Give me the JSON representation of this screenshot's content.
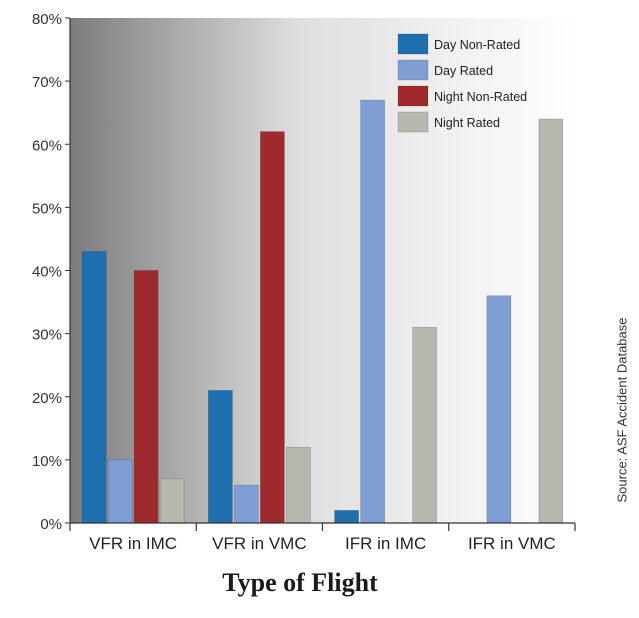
{
  "chart_data": {
    "type": "bar",
    "title": "",
    "xlabel": "Type of Flight",
    "ylabel": "",
    "source": "Source: ASF Accident Database",
    "categories": [
      "VFR in IMC",
      "VFR in VMC",
      "IFR in IMC",
      "IFR in VMC"
    ],
    "ylim": [
      0,
      80
    ],
    "yticks": [
      "0%",
      "10%",
      "20%",
      "30%",
      "40%",
      "50%",
      "60%",
      "70%",
      "80%"
    ],
    "legend_position": "top-right",
    "grid": false,
    "series": [
      {
        "name": "Day Non-Rated",
        "color": "#1f6fae",
        "values": [
          43,
          21,
          2,
          0
        ]
      },
      {
        "name": "Day Rated",
        "color": "#7f9fd4",
        "values": [
          10,
          6,
          67,
          36
        ]
      },
      {
        "name": "Night Non-Rated",
        "color": "#9e2a2e",
        "values": [
          40,
          62,
          0,
          0
        ]
      },
      {
        "name": "Night Rated",
        "color": "#b8b8b0",
        "values": [
          7,
          12,
          31,
          64
        ]
      }
    ]
  }
}
